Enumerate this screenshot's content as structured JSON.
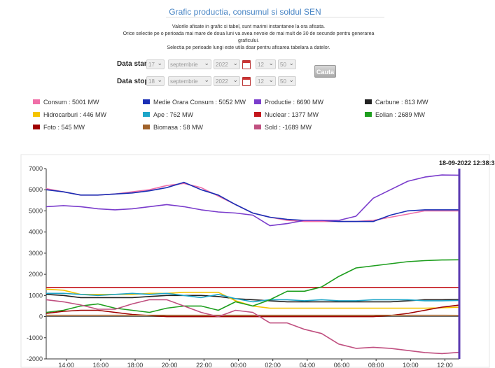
{
  "page": {
    "title": "Grafic productia, consumul si soldul SEN",
    "intro_lines": [
      "Valorile afisate in grafic si tabel, sunt marimi instantanee la ora afisata.",
      "Orice selectie pe o perioada mai mare de doua luni va avea nevoie de mai mult de 30 de secunde pentru generarea",
      "graficului.",
      "Selectia pe perioade lungi este utila doar pentru afisarea tabelara a datelor."
    ]
  },
  "form": {
    "start_label": "Data start",
    "stop_label": "Data stop",
    "start": {
      "day": "17",
      "month": "septembrie",
      "year": "2022",
      "hour": "12",
      "minute": "50"
    },
    "stop": {
      "day": "18",
      "month": "septembrie",
      "year": "2022",
      "hour": "12",
      "minute": "50"
    },
    "search_label": "Cauta"
  },
  "legend": [
    {
      "label": "Consum : 5001 MW",
      "color": "#f06fa8"
    },
    {
      "label": "Medie Orara Consum : 5052 MW",
      "color": "#1a2fb5"
    },
    {
      "label": "Productie : 6690 MW",
      "color": "#7a3ccc"
    },
    {
      "label": "Carbune : 813 MW",
      "color": "#222222"
    },
    {
      "label": "Hidrocarburi : 446 MW",
      "color": "#f5c400"
    },
    {
      "label": "Ape : 762 MW",
      "color": "#1ea6c9"
    },
    {
      "label": "Nuclear : 1377 MW",
      "color": "#c4161c"
    },
    {
      "label": "Eolian : 2689 MW",
      "color": "#1e9e1e"
    },
    {
      "label": "Foto : 545 MW",
      "color": "#a00000"
    },
    {
      "label": "Biomasa : 58 MW",
      "color": "#a0622a"
    },
    {
      "label": "Sold : -1689 MW",
      "color": "#c05080"
    }
  ],
  "chart_data": {
    "type": "line",
    "timestamp_label": "18-09-2022 12:38:3",
    "x_tick_labels": [
      "14:00",
      "16:00",
      "18:00",
      "20:00",
      "22:00",
      "00:00",
      "02:00",
      "04:00",
      "06:00",
      "08:00",
      "10:00",
      "12:00"
    ],
    "x_hours_from_start": [
      0,
      1,
      2,
      3,
      4,
      5,
      6,
      7,
      8,
      9,
      10,
      11,
      12,
      13,
      14,
      15,
      16,
      17,
      18,
      19,
      20,
      21,
      22,
      23,
      24
    ],
    "x_start_time": "12:50",
    "ylim": [
      -2000,
      7000
    ],
    "y_ticks": [
      -2000,
      -1000,
      0,
      1000,
      2000,
      3000,
      4000,
      5000,
      6000,
      7000
    ],
    "grid": false,
    "series": [
      {
        "name": "Consum",
        "color": "#f06fa8",
        "values": [
          6050,
          5900,
          5750,
          5750,
          5800,
          5900,
          6000,
          6200,
          6300,
          6100,
          5700,
          5300,
          4900,
          4700,
          4550,
          4500,
          4500,
          4500,
          4500,
          4550,
          4700,
          4850,
          5000,
          5000,
          5001
        ]
      },
      {
        "name": "Medie Orara Consum",
        "color": "#1a2fb5",
        "values": [
          6000,
          5900,
          5750,
          5750,
          5800,
          5850,
          5950,
          6100,
          6350,
          6000,
          5750,
          5300,
          4900,
          4700,
          4600,
          4550,
          4550,
          4500,
          4500,
          4500,
          4800,
          5000,
          5050,
          5050,
          5052
        ]
      },
      {
        "name": "Productie",
        "color": "#7a3ccc",
        "values": [
          5200,
          5250,
          5200,
          5100,
          5050,
          5100,
          5200,
          5300,
          5200,
          5050,
          4950,
          4900,
          4800,
          4300,
          4400,
          4550,
          4550,
          4550,
          4750,
          5600,
          6000,
          6400,
          6600,
          6700,
          6690
        ]
      },
      {
        "name": "Carbune",
        "color": "#222222",
        "values": [
          1050,
          1000,
          900,
          900,
          900,
          900,
          950,
          1000,
          1000,
          1000,
          950,
          850,
          800,
          750,
          700,
          700,
          700,
          700,
          700,
          700,
          700,
          750,
          800,
          800,
          813
        ]
      },
      {
        "name": "Hidrocarburi",
        "color": "#f5c400",
        "values": [
          1300,
          1250,
          1050,
          1050,
          1050,
          1050,
          1100,
          1100,
          1150,
          1150,
          1150,
          750,
          500,
          400,
          400,
          400,
          400,
          400,
          400,
          400,
          400,
          400,
          400,
          420,
          446
        ]
      },
      {
        "name": "Ape",
        "color": "#1ea6c9",
        "values": [
          1100,
          1100,
          1050,
          1000,
          1050,
          1100,
          1050,
          1100,
          1000,
          900,
          1050,
          850,
          700,
          800,
          800,
          750,
          800,
          750,
          750,
          800,
          800,
          800,
          750,
          750,
          762
        ]
      },
      {
        "name": "Nuclear",
        "color": "#c4161c",
        "values": [
          1380,
          1380,
          1380,
          1380,
          1380,
          1380,
          1380,
          1380,
          1380,
          1380,
          1380,
          1380,
          1380,
          1380,
          1380,
          1380,
          1380,
          1380,
          1380,
          1380,
          1380,
          1380,
          1380,
          1380,
          1377
        ]
      },
      {
        "name": "Eolian",
        "color": "#1e9e1e",
        "values": [
          200,
          300,
          500,
          600,
          400,
          300,
          200,
          400,
          500,
          500,
          300,
          700,
          500,
          800,
          1200,
          1200,
          1400,
          1900,
          2300,
          2400,
          2500,
          2600,
          2650,
          2680,
          2689
        ]
      },
      {
        "name": "Foto",
        "color": "#a00000",
        "values": [
          150,
          250,
          300,
          300,
          200,
          100,
          50,
          0,
          0,
          0,
          0,
          0,
          0,
          0,
          0,
          0,
          0,
          0,
          0,
          0,
          50,
          150,
          300,
          450,
          545
        ]
      },
      {
        "name": "Biomasa",
        "color": "#a0622a",
        "values": [
          60,
          60,
          60,
          60,
          60,
          60,
          60,
          60,
          60,
          60,
          60,
          60,
          60,
          60,
          60,
          60,
          60,
          60,
          60,
          60,
          60,
          60,
          60,
          60,
          58
        ]
      },
      {
        "name": "Sold",
        "color": "#c05080",
        "values": [
          800,
          700,
          550,
          350,
          350,
          600,
          800,
          800,
          500,
          200,
          0,
          300,
          200,
          -300,
          -300,
          -600,
          -800,
          -1300,
          -1500,
          -1450,
          -1500,
          -1600,
          -1700,
          -1750,
          -1689
        ]
      }
    ]
  }
}
